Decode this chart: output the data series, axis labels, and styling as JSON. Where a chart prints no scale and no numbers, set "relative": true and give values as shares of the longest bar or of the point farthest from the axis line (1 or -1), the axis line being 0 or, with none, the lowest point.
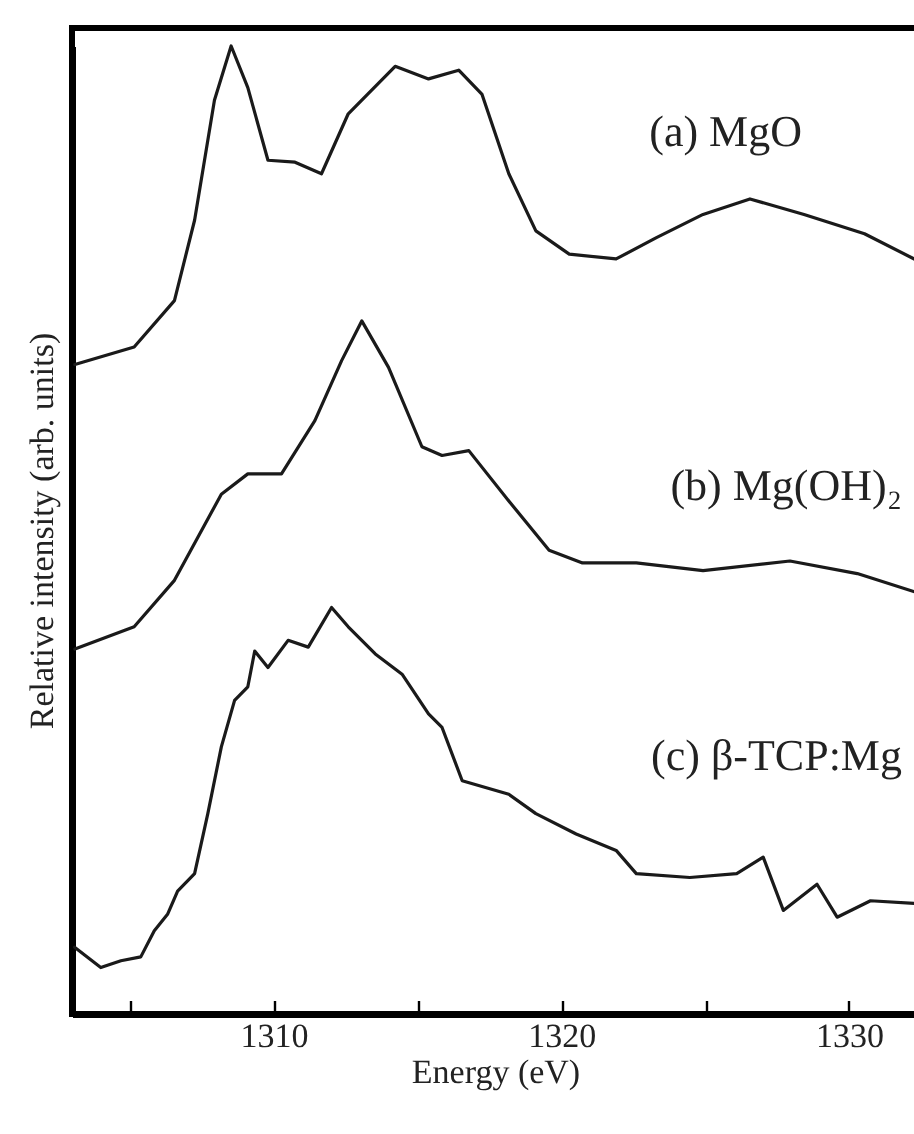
{
  "chart_data": {
    "type": "line",
    "relative": true,
    "xlabel": "Energy (eV)",
    "ylabel": "Relative intensity (arb. units)",
    "xlim": [
      1303,
      1332.4
    ],
    "xticks": [
      {
        "value": 1305,
        "label": null
      },
      1310,
      {
        "value": 1315,
        "label": null
      },
      1320,
      {
        "value": 1325,
        "label": null
      },
      1330
    ],
    "grid": false,
    "marker": "none",
    "line_style": "solid",
    "series": [
      {
        "name": "(a) MgO",
        "color": "#1a1a1a",
        "x": [
          1303.1,
          1305.16,
          1306.56,
          1307.26,
          1307.95,
          1308.53,
          1309.11,
          1309.81,
          1310.75,
          1311.67,
          1312.6,
          1314.23,
          1315.39,
          1316.44,
          1317.25,
          1318.18,
          1319.12,
          1320.28,
          1321.91,
          1323.31,
          1324.93,
          1326.56,
          1328.44,
          1330.54,
          1332.4
        ],
        "values": [
          0.671,
          0.689,
          0.737,
          0.82,
          0.944,
          1.0,
          0.957,
          0.882,
          0.88,
          0.868,
          0.93,
          0.979,
          0.966,
          0.975,
          0.95,
          0.868,
          0.809,
          0.785,
          0.78,
          0.802,
          0.826,
          0.842,
          0.826,
          0.806,
          0.778
        ]
      },
      {
        "name": "(b) Mg(OH)₂",
        "color": "#1a1a1a",
        "x": [
          1303.1,
          1305.16,
          1306.56,
          1308.19,
          1309.11,
          1310.28,
          1311.44,
          1312.37,
          1313.07,
          1314.0,
          1315.16,
          1315.86,
          1316.79,
          1318.18,
          1319.58,
          1320.74,
          1322.61,
          1324.93,
          1327.95,
          1330.29,
          1332.4
        ],
        "values": [
          0.377,
          0.4,
          0.448,
          0.537,
          0.558,
          0.558,
          0.613,
          0.675,
          0.716,
          0.668,
          0.586,
          0.577,
          0.582,
          0.53,
          0.479,
          0.466,
          0.466,
          0.458,
          0.468,
          0.455,
          0.435
        ]
      },
      {
        "name": "(c) β-TCP:Mg",
        "color": "#1a1a1a",
        "x": [
          1303.09,
          1304.0,
          1304.7,
          1305.39,
          1305.86,
          1306.32,
          1306.67,
          1307.26,
          1307.72,
          1308.19,
          1308.65,
          1309.11,
          1309.35,
          1309.81,
          1310.51,
          1311.21,
          1312.02,
          1312.6,
          1313.54,
          1314.47,
          1315.39,
          1315.86,
          1316.56,
          1318.18,
          1319.12,
          1320.52,
          1321.91,
          1322.61,
          1324.47,
          1326.1,
          1327.02,
          1327.72,
          1328.89,
          1329.59,
          1330.75,
          1332.4
        ],
        "values": [
          0.069,
          0.048,
          0.055,
          0.059,
          0.086,
          0.103,
          0.127,
          0.145,
          0.207,
          0.276,
          0.324,
          0.338,
          0.375,
          0.358,
          0.386,
          0.379,
          0.42,
          0.4,
          0.372,
          0.351,
          0.31,
          0.296,
          0.241,
          0.227,
          0.207,
          0.186,
          0.169,
          0.145,
          0.141,
          0.145,
          0.162,
          0.107,
          0.134,
          0.1,
          0.117,
          0.114
        ]
      }
    ]
  }
}
